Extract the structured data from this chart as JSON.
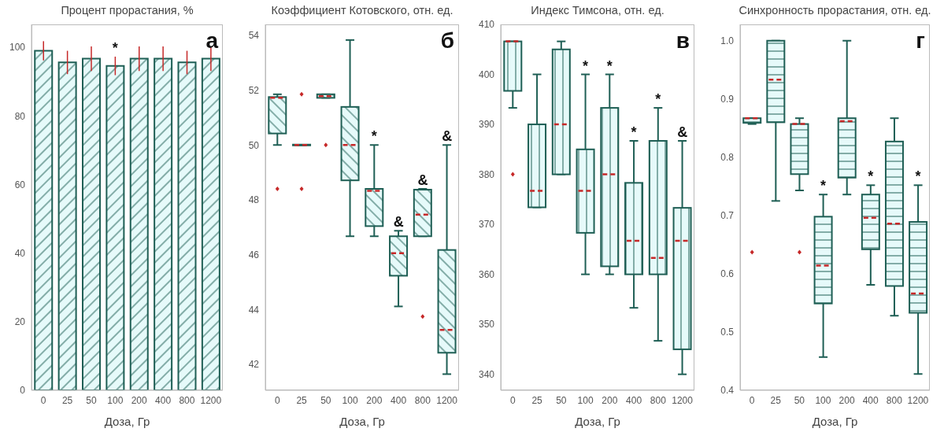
{
  "chart_data": [
    {
      "type": "bar",
      "title": "Процент прорастания, %",
      "xlabel": "Доза, Гр",
      "categories": [
        "0",
        "25",
        "50",
        "100",
        "200",
        "400",
        "800",
        "1200"
      ],
      "values": [
        99,
        95.6,
        96.7,
        94.6,
        96.7,
        96.7,
        95.6,
        96.7
      ],
      "errors": [
        2.8,
        3.4,
        3.6,
        2.7,
        3.6,
        3.6,
        3.4,
        3.6
      ],
      "color": "#1f5f55",
      "ylim": [
        0,
        106.7
      ],
      "yticks": [
        0,
        20,
        40,
        60,
        80,
        100
      ],
      "annotations": [
        "а",
        {
          "text": "*",
          "x": "100",
          "y": 97.3
        }
      ]
    },
    {
      "type": "box",
      "title": "Коэффициент Котовского, отн. ед.",
      "xlabel": "Доза, Гр",
      "categories": [
        "0",
        "25",
        "50",
        "100",
        "200",
        "400",
        "800",
        "1200"
      ],
      "color": "#1f5f55",
      "ylim": [
        41.05,
        54.4
      ],
      "yticks": [
        42,
        44,
        46,
        48,
        50,
        52,
        54
      ],
      "boxes": [
        {
          "low": 50,
          "q1": 50.42,
          "median": 51.72,
          "q3": 51.75,
          "high": 51.85,
          "outliers": [
            48.4
          ]
        },
        {
          "low": 50,
          "q1": 50,
          "median": 50,
          "q3": 50,
          "high": 50,
          "outliers": [
            51.85,
            48.4
          ]
        },
        {
          "low": 51.72,
          "q1": 51.72,
          "median": 51.78,
          "q3": 51.85,
          "high": 51.85,
          "outliers": [
            50
          ]
        },
        {
          "low": 46.67,
          "q1": 48.71,
          "median": 50,
          "q3": 51.39,
          "high": 53.83
        },
        {
          "low": 46.67,
          "q1": 47.04,
          "median": 48.33,
          "q3": 48.4,
          "high": 50
        },
        {
          "low": 44.11,
          "q1": 45.23,
          "median": 46.05,
          "q3": 46.67,
          "high": 46.87
        },
        {
          "low": 46.67,
          "q1": 46.67,
          "median": 47.46,
          "q3": 48.37,
          "high": 48.4,
          "outliers": [
            43.74
          ]
        },
        {
          "low": 41.64,
          "q1": 42.42,
          "median": 43.25,
          "q3": 46.17,
          "high": 50
        }
      ],
      "annotations": [
        "б",
        {
          "text": "*",
          "x": "200",
          "y": 50
        },
        {
          "text": "&",
          "x": "400",
          "y": 46.87
        },
        {
          "text": "&",
          "x": "800",
          "y": 48.4
        },
        {
          "text": "&",
          "x": "1200",
          "y": 50
        }
      ]
    },
    {
      "type": "box",
      "title": "Индекс Тимсона, отн. ед.",
      "xlabel": "Доза, Гр",
      "categories": [
        "0",
        "25",
        "50",
        "100",
        "200",
        "400",
        "800",
        "1200"
      ],
      "color": "#1f5f55",
      "ylim": [
        336.8,
        410
      ],
      "yticks": [
        340,
        350,
        360,
        370,
        380,
        390,
        400,
        410
      ],
      "boxes": [
        {
          "low": 393.3,
          "q1": 396.7,
          "median": 406.6,
          "q3": 406.6,
          "high": 406.6,
          "outliers": [
            380
          ]
        },
        {
          "low": 373.4,
          "q1": 373.4,
          "median": 376.7,
          "q3": 390,
          "high": 400
        },
        {
          "low": 380,
          "q1": 380,
          "median": 390,
          "q3": 405,
          "high": 406.6
        },
        {
          "low": 360,
          "q1": 368.3,
          "median": 376.7,
          "q3": 385,
          "high": 400
        },
        {
          "low": 360,
          "q1": 361.6,
          "median": 380,
          "q3": 393.3,
          "high": 400
        },
        {
          "low": 353.3,
          "q1": 360,
          "median": 366.7,
          "q3": 378.3,
          "high": 386.7
        },
        {
          "low": 346.7,
          "q1": 360,
          "median": 363.3,
          "q3": 386.7,
          "high": 393.3
        },
        {
          "low": 340,
          "q1": 345,
          "median": 366.7,
          "q3": 373.3,
          "high": 386.7
        }
      ],
      "annotations": [
        "в",
        {
          "text": "*",
          "x": "100",
          "y": 400
        },
        {
          "text": "*",
          "x": "200",
          "y": 400
        },
        {
          "text": "*",
          "x": "400",
          "y": 386.7
        },
        {
          "text": "*",
          "x": "800",
          "y": 393.3
        },
        {
          "text": "&",
          "x": "1200",
          "y": 386.7
        }
      ]
    },
    {
      "type": "box",
      "title": "Синхронность прорастания, отн. ед.",
      "xlabel": "Доза, Гр",
      "categories": [
        "0",
        "25",
        "50",
        "100",
        "200",
        "400",
        "800",
        "1200"
      ],
      "color": "#1f5f55",
      "ylim": [
        0.4,
        1.028
      ],
      "yticks": [
        0.4,
        0.5,
        0.6,
        0.7,
        0.8,
        0.9,
        {
          "value": 1,
          "label": "1.0"
        }
      ],
      "boxes": [
        {
          "low": 0.857,
          "q1": 0.859,
          "median": 0.867,
          "q3": 0.867,
          "high": 0.867,
          "outliers": [
            0.637
          ]
        },
        {
          "low": 0.725,
          "q1": 0.86,
          "median": 0.933,
          "q3": 1,
          "high": 1
        },
        {
          "low": 0.743,
          "q1": 0.771,
          "median": 0.857,
          "q3": 0.857,
          "high": 0.867,
          "outliers": [
            0.637
          ]
        },
        {
          "low": 0.457,
          "q1": 0.549,
          "median": 0.614,
          "q3": 0.698,
          "high": 0.736
        },
        {
          "low": 0.736,
          "q1": 0.765,
          "median": 0.862,
          "q3": 0.867,
          "high": 1
        },
        {
          "low": 0.581,
          "q1": 0.642,
          "median": 0.696,
          "q3": 0.736,
          "high": 0.752
        },
        {
          "low": 0.528,
          "q1": 0.579,
          "median": 0.686,
          "q3": 0.827,
          "high": 0.867
        },
        {
          "low": 0.428,
          "q1": 0.533,
          "median": 0.566,
          "q3": 0.689,
          "high": 0.752
        }
      ],
      "annotations": [
        "г",
        {
          "text": "*",
          "x": "100",
          "y": 0.736
        },
        {
          "text": "*",
          "x": "400",
          "y": 0.752
        },
        {
          "text": "*",
          "x": "1200",
          "y": 0.752
        }
      ]
    }
  ]
}
